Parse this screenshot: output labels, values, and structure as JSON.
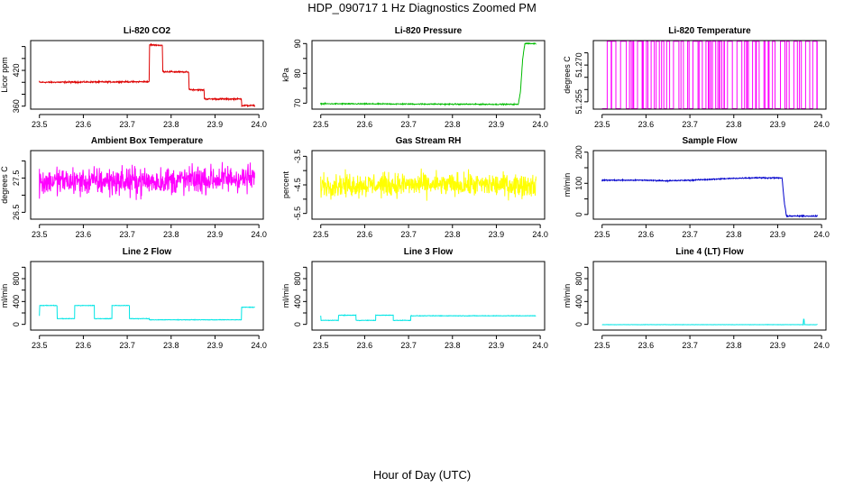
{
  "figure": {
    "title": "HDP_090717  1 Hz Diagnostics Zoomed PM",
    "xlabel": "Hour of Day (UTC)"
  },
  "colors": {
    "co2": "#dd0000",
    "pressure": "#00bb00",
    "temperature": "#ff00ff",
    "ambient": "#ff00ff",
    "rh": "#ffff00",
    "sample_flow": "#0000cc",
    "line2": "#00e5e5",
    "line3": "#00e5e5",
    "line4": "#00e5e5"
  },
  "chart_data": [
    {
      "id": "co2",
      "type": "line",
      "title": "Li-820 CO2",
      "ylabel": "Licor ppm",
      "xlim": [
        23.48,
        24.01
      ],
      "ylim": [
        355,
        470
      ],
      "xticks": [
        23.5,
        23.6,
        23.7,
        23.8,
        23.9,
        24.0
      ],
      "xtick_labels": [
        "23.5",
        "23.6",
        "23.7",
        "23.8",
        "23.9",
        "24.0"
      ],
      "yticks": [
        360,
        380,
        400,
        420,
        440,
        460
      ],
      "ytick_labels": [
        "360",
        "",
        "",
        "420",
        "",
        ""
      ],
      "noise": 1.0,
      "x": [
        23.5,
        23.75,
        23.751,
        23.78,
        23.781,
        23.84,
        23.841,
        23.875,
        23.876,
        23.96,
        23.961,
        23.99
      ],
      "y": [
        400,
        401,
        463,
        462,
        418,
        417,
        388,
        387,
        372,
        372,
        361,
        361
      ]
    },
    {
      "id": "pressure",
      "type": "line",
      "title": "Li-820 Pressure",
      "ylabel": "kPa",
      "xlim": [
        23.48,
        24.01
      ],
      "ylim": [
        68,
        91
      ],
      "xticks": [
        23.5,
        23.6,
        23.7,
        23.8,
        23.9,
        24.0
      ],
      "xtick_labels": [
        "23.5",
        "23.6",
        "23.7",
        "23.8",
        "23.9",
        "24.0"
      ],
      "yticks": [
        70,
        75,
        80,
        85,
        90
      ],
      "ytick_labels": [
        "70",
        "",
        "80",
        "",
        "90"
      ],
      "noise": 0.15,
      "x": [
        23.5,
        23.94,
        23.95,
        23.955,
        23.96,
        23.965,
        23.99
      ],
      "y": [
        69.8,
        69.6,
        69.6,
        74,
        85,
        90,
        90
      ]
    },
    {
      "id": "temperature",
      "type": "line",
      "title": "Li-820 Temperature",
      "ylabel": "degrees C",
      "xlim": [
        23.48,
        24.01
      ],
      "ylim": [
        51.252,
        51.28
      ],
      "xticks": [
        23.5,
        23.6,
        23.7,
        23.8,
        23.9,
        24.0
      ],
      "xtick_labels": [
        "23.5",
        "23.6",
        "23.7",
        "23.8",
        "23.9",
        "24.0"
      ],
      "yticks": [
        51.255,
        51.26,
        51.265,
        51.27,
        51.275
      ],
      "ytick_labels": [
        "51.255",
        "",
        "",
        "51.270",
        ""
      ],
      "levels": [
        51.2522,
        51.2797
      ],
      "x": [
        23.5,
        23.99
      ],
      "y": [
        51.2522,
        51.2797
      ]
    },
    {
      "id": "ambient",
      "type": "line",
      "title": "Ambient Box Temperature",
      "ylabel": "degrees C",
      "xlim": [
        23.48,
        24.01
      ],
      "ylim": [
        26.3,
        28.3
      ],
      "xticks": [
        23.5,
        23.6,
        23.7,
        23.8,
        23.9,
        24.0
      ],
      "xtick_labels": [
        "23.5",
        "23.6",
        "23.7",
        "23.8",
        "23.9",
        "24.0"
      ],
      "yticks": [
        26.5,
        27.0,
        27.5,
        28.0
      ],
      "ytick_labels": [
        "26.5",
        "",
        "27.5",
        ""
      ],
      "noise": 0.35,
      "x": [
        23.5,
        23.75,
        23.99
      ],
      "y": [
        27.4,
        27.4,
        27.5
      ]
    },
    {
      "id": "rh",
      "type": "line",
      "title": "Gas Stream RH",
      "ylabel": "percent",
      "xlim": [
        23.48,
        24.01
      ],
      "ylim": [
        -5.7,
        -3.3
      ],
      "xticks": [
        23.5,
        23.6,
        23.7,
        23.8,
        23.9,
        24.0
      ],
      "xtick_labels": [
        "23.5",
        "23.6",
        "23.7",
        "23.8",
        "23.9",
        "24.0"
      ],
      "yticks": [
        -5.5,
        -5.0,
        -4.5,
        -4.0,
        -3.5
      ],
      "ytick_labels": [
        "-5.5",
        "",
        "-4.5",
        "",
        "-3.5"
      ],
      "noise": 0.35,
      "x": [
        23.5,
        23.99
      ],
      "y": [
        -4.5,
        -4.5
      ]
    },
    {
      "id": "sample_flow",
      "type": "line",
      "title": "Sample Flow",
      "ylabel": "ml/min",
      "xlim": [
        23.48,
        24.01
      ],
      "ylim": [
        -15,
        205
      ],
      "xticks": [
        23.5,
        23.6,
        23.7,
        23.8,
        23.9,
        24.0
      ],
      "xtick_labels": [
        "23.5",
        "23.6",
        "23.7",
        "23.8",
        "23.9",
        "24.0"
      ],
      "yticks": [
        0,
        50,
        100,
        150,
        200
      ],
      "ytick_labels": [
        "0",
        "",
        "100",
        "",
        "200"
      ],
      "noise": 1.5,
      "x": [
        23.5,
        23.6,
        23.65,
        23.7,
        23.75,
        23.8,
        23.85,
        23.91,
        23.915,
        23.92,
        23.99
      ],
      "y": [
        110,
        110,
        108,
        110,
        113,
        116,
        118,
        117,
        40,
        -5,
        -5
      ]
    },
    {
      "id": "line2",
      "type": "line",
      "title": "Line 2 Flow",
      "ylabel": "ml/min",
      "xlim": [
        23.48,
        24.01
      ],
      "ylim": [
        -100,
        1100
      ],
      "xticks": [
        23.5,
        23.6,
        23.7,
        23.8,
        23.9,
        24.0
      ],
      "xtick_labels": [
        "23.5",
        "23.6",
        "23.7",
        "23.8",
        "23.9",
        "24.0"
      ],
      "yticks": [
        0,
        200,
        400,
        600,
        800,
        1000
      ],
      "ytick_labels": [
        "0",
        "",
        "400",
        "",
        "800",
        ""
      ],
      "noise": 4,
      "x": [
        23.5,
        23.5,
        23.54,
        23.54,
        23.58,
        23.58,
        23.625,
        23.625,
        23.665,
        23.665,
        23.705,
        23.705,
        23.75,
        23.75,
        23.96,
        23.96,
        23.99
      ],
      "y": [
        150,
        330,
        330,
        100,
        100,
        330,
        330,
        100,
        100,
        330,
        330,
        100,
        100,
        80,
        80,
        300,
        300
      ]
    },
    {
      "id": "line3",
      "type": "line",
      "title": "Line 3 Flow",
      "ylabel": "ml/min",
      "xlim": [
        23.48,
        24.01
      ],
      "ylim": [
        -100,
        1100
      ],
      "xticks": [
        23.5,
        23.6,
        23.7,
        23.8,
        23.9,
        24.0
      ],
      "xtick_labels": [
        "23.5",
        "23.6",
        "23.7",
        "23.8",
        "23.9",
        "24.0"
      ],
      "yticks": [
        0,
        200,
        400,
        600,
        800,
        1000
      ],
      "ytick_labels": [
        "0",
        "",
        "400",
        "",
        "800",
        ""
      ],
      "noise": 4,
      "x": [
        23.5,
        23.5,
        23.54,
        23.54,
        23.58,
        23.58,
        23.625,
        23.625,
        23.665,
        23.665,
        23.705,
        23.705,
        23.99
      ],
      "y": [
        150,
        70,
        70,
        160,
        160,
        70,
        70,
        160,
        160,
        70,
        70,
        150,
        150
      ]
    },
    {
      "id": "line4",
      "type": "line",
      "title": "Line 4 (LT) Flow",
      "ylabel": "ml/min",
      "xlim": [
        23.48,
        24.01
      ],
      "ylim": [
        -100,
        1100
      ],
      "xticks": [
        23.5,
        23.6,
        23.7,
        23.8,
        23.9,
        24.0
      ],
      "xtick_labels": [
        "23.5",
        "23.6",
        "23.7",
        "23.8",
        "23.9",
        "24.0"
      ],
      "yticks": [
        0,
        200,
        400,
        600,
        800,
        1000
      ],
      "ytick_labels": [
        "0",
        "",
        "400",
        "",
        "800",
        ""
      ],
      "noise": 2,
      "x": [
        23.5,
        23.958,
        23.959,
        23.96,
        23.961,
        23.99
      ],
      "y": [
        -5,
        -5,
        90,
        90,
        -5,
        -5
      ]
    }
  ]
}
